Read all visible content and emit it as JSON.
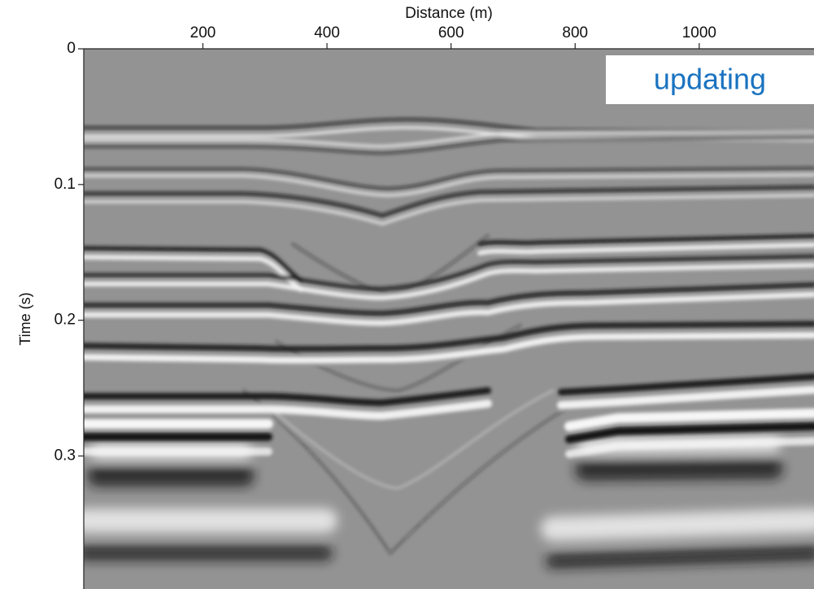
{
  "chart_data": {
    "type": "image",
    "xlabel": "Distance (m)",
    "ylabel": "Time (s)",
    "xlim": [
      8,
      1185
    ],
    "xticks": [
      200,
      400,
      600,
      800,
      1000
    ],
    "ylim": [
      0,
      0.398
    ],
    "yticks": [
      0,
      0.1,
      0.2,
      0.3
    ],
    "x_axis_position": "top",
    "y_reversed": true,
    "annotation": "updating",
    "annotation_color": "#1a73c0"
  }
}
